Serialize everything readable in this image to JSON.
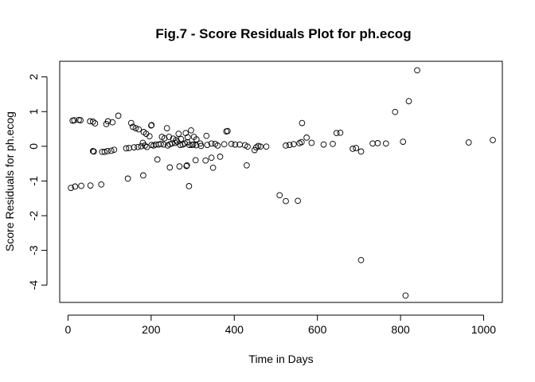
{
  "chart_data": {
    "type": "scatter",
    "title": "Fig.7 - Score Residuals Plot for ph.ecog",
    "xlabel": "Time in Days",
    "ylabel": "Score Residuals for ph.ecog",
    "xlim": [
      -20,
      1045
    ],
    "ylim": [
      -4.5,
      2.45
    ],
    "xticks": [
      0,
      200,
      400,
      600,
      800,
      1000
    ],
    "yticks": [
      -4,
      -3,
      -2,
      -1,
      0,
      1,
      2
    ],
    "grid": false,
    "legend": "none",
    "marker": "open-circle",
    "points": [
      [
        11,
        0.74
      ],
      [
        15,
        0.75
      ],
      [
        26,
        0.76
      ],
      [
        30,
        0.75
      ],
      [
        53,
        0.72
      ],
      [
        60,
        0.71
      ],
      [
        65,
        0.66
      ],
      [
        92,
        0.64
      ],
      [
        96,
        0.72
      ],
      [
        107,
        0.69
      ],
      [
        121,
        0.88
      ],
      [
        152,
        0.67
      ],
      [
        156,
        0.56
      ],
      [
        163,
        0.52
      ],
      [
        170,
        0.49
      ],
      [
        182,
        0.41
      ],
      [
        188,
        0.36
      ],
      [
        196,
        0.29
      ],
      [
        200,
        0.6
      ],
      [
        201,
        0.61
      ],
      [
        226,
        0.27
      ],
      [
        232,
        0.23
      ],
      [
        238,
        0.52
      ],
      [
        243,
        0.27
      ],
      [
        253,
        0.22
      ],
      [
        260,
        0.18
      ],
      [
        266,
        0.36
      ],
      [
        272,
        0.21
      ],
      [
        283,
        0.38
      ],
      [
        288,
        0.26
      ],
      [
        296,
        0.46
      ],
      [
        303,
        0.27
      ],
      [
        309,
        0.2
      ],
      [
        318,
        0.08
      ],
      [
        333,
        0.3
      ],
      [
        381,
        0.43
      ],
      [
        384,
        0.44
      ],
      [
        563,
        0.67
      ],
      [
        574,
        0.25
      ],
      [
        646,
        0.38
      ],
      [
        655,
        0.39
      ],
      [
        60,
        -0.14
      ],
      [
        62,
        -0.15
      ],
      [
        82,
        -0.16
      ],
      [
        88,
        -0.16
      ],
      [
        95,
        -0.14
      ],
      [
        104,
        -0.13
      ],
      [
        111,
        -0.1
      ],
      [
        140,
        -0.06
      ],
      [
        147,
        -0.05
      ],
      [
        159,
        -0.03
      ],
      [
        168,
        -0.02
      ],
      [
        176,
        0.0
      ],
      [
        180,
        0.1
      ],
      [
        185,
        0.02
      ],
      [
        190,
        -0.02
      ],
      [
        201,
        0.04
      ],
      [
        206,
        0.02
      ],
      [
        211,
        0.05
      ],
      [
        218,
        0.05
      ],
      [
        223,
        0.07
      ],
      [
        230,
        0.05
      ],
      [
        240,
        0.02
      ],
      [
        245,
        0.06
      ],
      [
        250,
        0.08
      ],
      [
        258,
        0.1
      ],
      [
        263,
        0.13
      ],
      [
        270,
        0.04
      ],
      [
        276,
        0.05
      ],
      [
        281,
        0.08
      ],
      [
        287,
        0.12
      ],
      [
        292,
        0.04
      ],
      [
        298,
        0.04
      ],
      [
        301,
        0.05
      ],
      [
        308,
        0.03
      ],
      [
        320,
        0.01
      ],
      [
        335,
        0.04
      ],
      [
        345,
        0.08
      ],
      [
        354,
        0.07
      ],
      [
        360,
        0.02
      ],
      [
        376,
        0.06
      ],
      [
        393,
        0.07
      ],
      [
        402,
        0.05
      ],
      [
        413,
        0.05
      ],
      [
        426,
        0.03
      ],
      [
        432,
        -0.01
      ],
      [
        453,
        -0.03
      ],
      [
        458,
        0.01
      ],
      [
        463,
        -0.01
      ],
      [
        477,
        -0.01
      ],
      [
        524,
        0.02
      ],
      [
        533,
        0.04
      ],
      [
        543,
        0.06
      ],
      [
        557,
        0.09
      ],
      [
        562,
        0.12
      ],
      [
        586,
        0.1
      ],
      [
        615,
        0.05
      ],
      [
        637,
        0.07
      ],
      [
        685,
        -0.07
      ],
      [
        693,
        -0.05
      ],
      [
        705,
        -0.15
      ],
      [
        733,
        0.08
      ],
      [
        745,
        0.09
      ],
      [
        765,
        0.08
      ],
      [
        806,
        0.13
      ],
      [
        964,
        0.11
      ],
      [
        1022,
        0.18
      ],
      [
        7,
        -1.2
      ],
      [
        17,
        -1.16
      ],
      [
        32,
        -1.14
      ],
      [
        54,
        -1.13
      ],
      [
        80,
        -1.1
      ],
      [
        144,
        -0.93
      ],
      [
        181,
        -0.84
      ],
      [
        215,
        -0.38
      ],
      [
        245,
        -0.61
      ],
      [
        268,
        -0.58
      ],
      [
        285,
        -0.57
      ],
      [
        286,
        -0.55
      ],
      [
        291,
        -1.15
      ],
      [
        307,
        -0.4
      ],
      [
        331,
        -0.41
      ],
      [
        345,
        -0.33
      ],
      [
        349,
        -0.62
      ],
      [
        366,
        -0.3
      ],
      [
        430,
        -0.55
      ],
      [
        449,
        -0.11
      ],
      [
        509,
        -1.41
      ],
      [
        524,
        -1.58
      ],
      [
        553,
        -1.57
      ],
      [
        705,
        -3.28
      ],
      [
        812,
        -4.3
      ],
      [
        787,
        0.99
      ],
      [
        820,
        1.3
      ],
      [
        840,
        2.19
      ]
    ]
  }
}
